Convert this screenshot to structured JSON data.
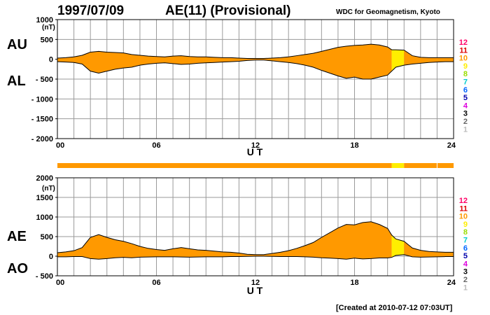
{
  "header": {
    "date": "1997/07/09",
    "title": "AE(11) (Provisional)",
    "source": "WDC for Geomagnetism, Kyoto"
  },
  "footer": {
    "created": "[Created at 2010-07-12 07:03UT]"
  },
  "colors": {
    "fill": "#ff9900",
    "fill_highlight": "#ffff00",
    "grid": "#9a9a9a",
    "line": "#000000",
    "level_colors": {
      "12": "#ff0066",
      "11": "#dd0000",
      "10": "#ff9900",
      "9": "#ffee00",
      "8": "#99dd00",
      "7": "#00cccc",
      "6": "#0066ff",
      "5": "#0000aa",
      "4": "#dd00dd",
      "3": "#000000",
      "2": "#666666",
      "1": "#bbbbbb"
    }
  },
  "levels": [
    "12",
    "11",
    "10",
    "9",
    "8",
    "7",
    "6",
    "5",
    "4",
    "3",
    "2",
    "1"
  ],
  "chart_data": [
    {
      "type": "area",
      "panel": "AU/AL",
      "label_top": "AU",
      "label_bottom": "AL",
      "unit": "(nT)",
      "xlabel": "U T",
      "x_ticks": [
        "00",
        "06",
        "12",
        "18",
        "24"
      ],
      "x_range": [
        0,
        24
      ],
      "ylim": [
        -2000,
        1000
      ],
      "y_ticks": [
        1000,
        500,
        0,
        -500,
        -1000,
        -1500,
        -2000
      ],
      "grid": true,
      "x": [
        0,
        0.5,
        1,
        1.5,
        2,
        2.5,
        3,
        3.5,
        4,
        4.5,
        5,
        5.5,
        6,
        6.5,
        7,
        7.5,
        8,
        8.5,
        9,
        9.5,
        10,
        10.5,
        11,
        11.5,
        12,
        12.5,
        13,
        13.5,
        14,
        14.5,
        15,
        15.5,
        16,
        16.5,
        17,
        17.5,
        18,
        18.5,
        19,
        19.5,
        20,
        20.25,
        20.5,
        21,
        21.5,
        22,
        22.5,
        23,
        23.5,
        24
      ],
      "series": [
        {
          "name": "AU",
          "values": [
            30,
            40,
            60,
            100,
            180,
            200,
            180,
            170,
            160,
            120,
            100,
            80,
            70,
            60,
            80,
            90,
            70,
            60,
            60,
            50,
            40,
            40,
            30,
            20,
            20,
            20,
            30,
            40,
            60,
            90,
            120,
            150,
            200,
            250,
            300,
            330,
            350,
            360,
            380,
            360,
            310,
            240,
            240,
            230,
            90,
            50,
            40,
            40,
            40,
            40
          ]
        },
        {
          "name": "AL",
          "values": [
            -60,
            -70,
            -80,
            -120,
            -300,
            -350,
            -300,
            -250,
            -220,
            -200,
            -150,
            -120,
            -100,
            -90,
            -110,
            -130,
            -120,
            -100,
            -90,
            -80,
            -70,
            -60,
            -50,
            -30,
            -20,
            -20,
            -40,
            -60,
            -80,
            -110,
            -150,
            -200,
            -280,
            -350,
            -420,
            -480,
            -450,
            -500,
            -500,
            -450,
            -400,
            -300,
            -200,
            -150,
            -120,
            -100,
            -80,
            -70,
            -60,
            -60
          ]
        }
      ]
    },
    {
      "type": "area",
      "panel": "AE/AO",
      "label_top": "AE",
      "label_bottom": "AO",
      "unit": "(nT)",
      "xlabel": "U T",
      "x_ticks": [
        "00",
        "06",
        "12",
        "18",
        "24"
      ],
      "x_range": [
        0,
        24
      ],
      "ylim": [
        -500,
        2000
      ],
      "y_ticks": [
        2000,
        1500,
        1000,
        500,
        0,
        -500
      ],
      "grid": true,
      "x": [
        0,
        0.5,
        1,
        1.5,
        2,
        2.5,
        3,
        3.5,
        4,
        4.5,
        5,
        5.5,
        6,
        6.5,
        7,
        7.5,
        8,
        8.5,
        9,
        9.5,
        10,
        10.5,
        11,
        11.5,
        12,
        12.5,
        13,
        13.5,
        14,
        14.5,
        15,
        15.5,
        16,
        16.5,
        17,
        17.5,
        18,
        18.5,
        19,
        19.5,
        20,
        20.25,
        20.5,
        21,
        21.5,
        22,
        22.5,
        23,
        23.5,
        24
      ],
      "series": [
        {
          "name": "AE",
          "values": [
            90,
            110,
            140,
            220,
            480,
            550,
            480,
            420,
            380,
            320,
            250,
            200,
            170,
            150,
            190,
            220,
            190,
            160,
            150,
            130,
            110,
            100,
            80,
            50,
            40,
            40,
            70,
            100,
            140,
            200,
            270,
            350,
            480,
            600,
            720,
            810,
            800,
            860,
            880,
            810,
            710,
            540,
            440,
            380,
            210,
            150,
            120,
            110,
            100,
            100
          ]
        },
        {
          "name": "AO",
          "values": [
            -15,
            -15,
            -10,
            -10,
            -60,
            -75,
            -60,
            -40,
            -30,
            -40,
            -25,
            -20,
            -15,
            -15,
            -15,
            -20,
            -25,
            -20,
            -15,
            -15,
            -15,
            -10,
            -10,
            -5,
            0,
            0,
            -5,
            -10,
            -10,
            -10,
            -15,
            -25,
            -40,
            -50,
            -60,
            -75,
            -50,
            -70,
            -60,
            -45,
            -45,
            -30,
            20,
            40,
            -15,
            -25,
            -20,
            -15,
            -10,
            -10
          ]
        }
      ]
    }
  ],
  "quality_bar": {
    "segments": [
      {
        "from": 0,
        "to": 20.25,
        "level": "10"
      },
      {
        "from": 20.25,
        "to": 21,
        "level": "9"
      },
      {
        "from": 21,
        "to": 24,
        "level": "10"
      }
    ]
  }
}
